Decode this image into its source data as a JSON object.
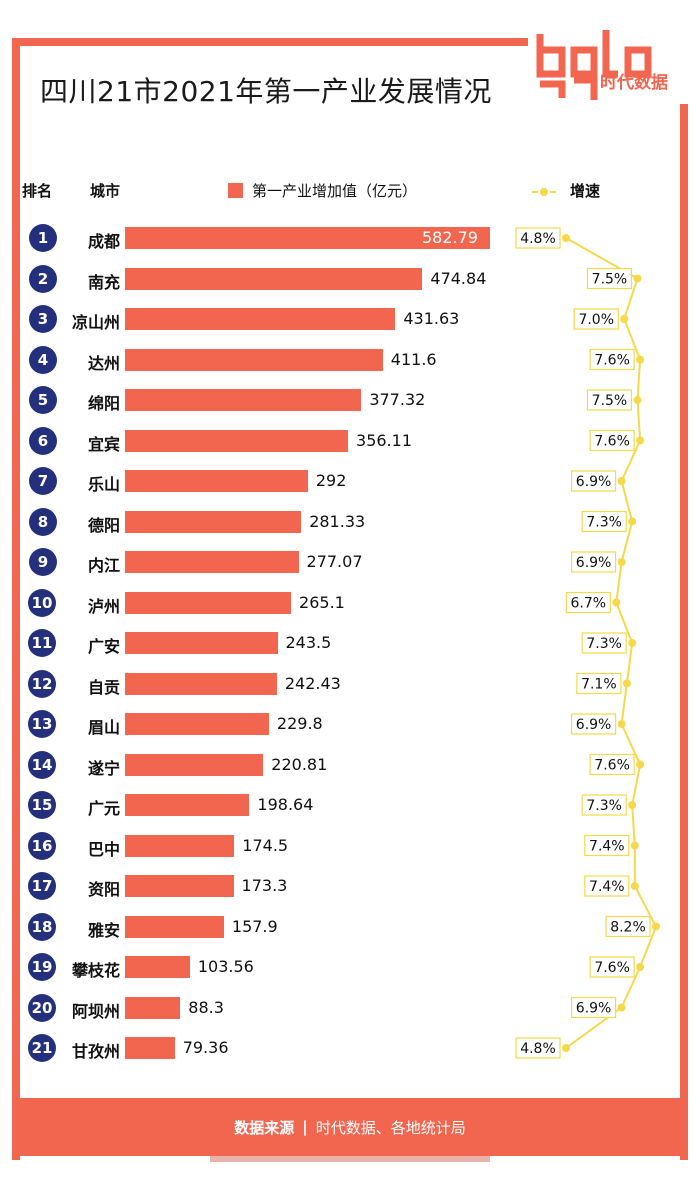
{
  "title": "四川21市2021年第一产业发展情况",
  "logo": {
    "text": "时代数据"
  },
  "header": {
    "rank": "排名",
    "city": "城市",
    "legend_bar": "第一产业增加值（亿元）",
    "legend_line": "增速"
  },
  "footer": {
    "label": "数据来源",
    "separator": "|",
    "source": "时代数据、各地统计局"
  },
  "colors": {
    "accent": "#F26650",
    "rank": "#24307C",
    "line": "#F5D94A"
  },
  "chart_data": {
    "type": "bar",
    "title": "四川21市2021年第一产业发展情况",
    "ylabel": "第一产业增加值（亿元）",
    "categories": [
      "成都",
      "南充",
      "凉山州",
      "达州",
      "绵阳",
      "宜宾",
      "乐山",
      "德阳",
      "内江",
      "泸州",
      "广安",
      "自贡",
      "眉山",
      "遂宁",
      "广元",
      "巴中",
      "资阳",
      "雅安",
      "攀枝花",
      "阿坝州",
      "甘孜州"
    ],
    "ranks": [
      "1",
      "2",
      "3",
      "4",
      "5",
      "6",
      "7",
      "8",
      "9",
      "10",
      "11",
      "12",
      "13",
      "14",
      "15",
      "16",
      "17",
      "18",
      "19",
      "20",
      "21"
    ],
    "series": [
      {
        "name": "第一产业增加值（亿元）",
        "values": [
          582.79,
          474.84,
          431.63,
          411.6,
          377.32,
          356.11,
          292,
          281.33,
          277.07,
          265.1,
          243.5,
          242.43,
          229.8,
          220.81,
          198.64,
          174.5,
          173.3,
          157.9,
          103.56,
          88.3,
          79.36
        ],
        "labels": [
          "582.79",
          "474.84",
          "431.63",
          "411.6",
          "377.32",
          "356.11",
          "292",
          "281.33",
          "277.07",
          "265.1",
          "243.5",
          "242.43",
          "229.8",
          "220.81",
          "198.64",
          "174.5",
          "173.3",
          "157.9",
          "103.56",
          "88.3",
          "79.36"
        ]
      },
      {
        "name": "增速",
        "values": [
          4.8,
          7.5,
          7.0,
          7.6,
          7.5,
          7.6,
          6.9,
          7.3,
          6.9,
          6.7,
          7.3,
          7.1,
          6.9,
          7.6,
          7.3,
          7.4,
          7.4,
          8.2,
          7.6,
          6.9,
          4.8
        ],
        "labels": [
          "4.8%",
          "7.5%",
          "7.0%",
          "7.6%",
          "7.5%",
          "7.6%",
          "6.9%",
          "7.3%",
          "6.9%",
          "6.7%",
          "7.3%",
          "7.1%",
          "6.9%",
          "7.6%",
          "7.3%",
          "7.4%",
          "7.4%",
          "8.2%",
          "7.6%",
          "6.9%",
          "4.8%"
        ]
      }
    ]
  }
}
